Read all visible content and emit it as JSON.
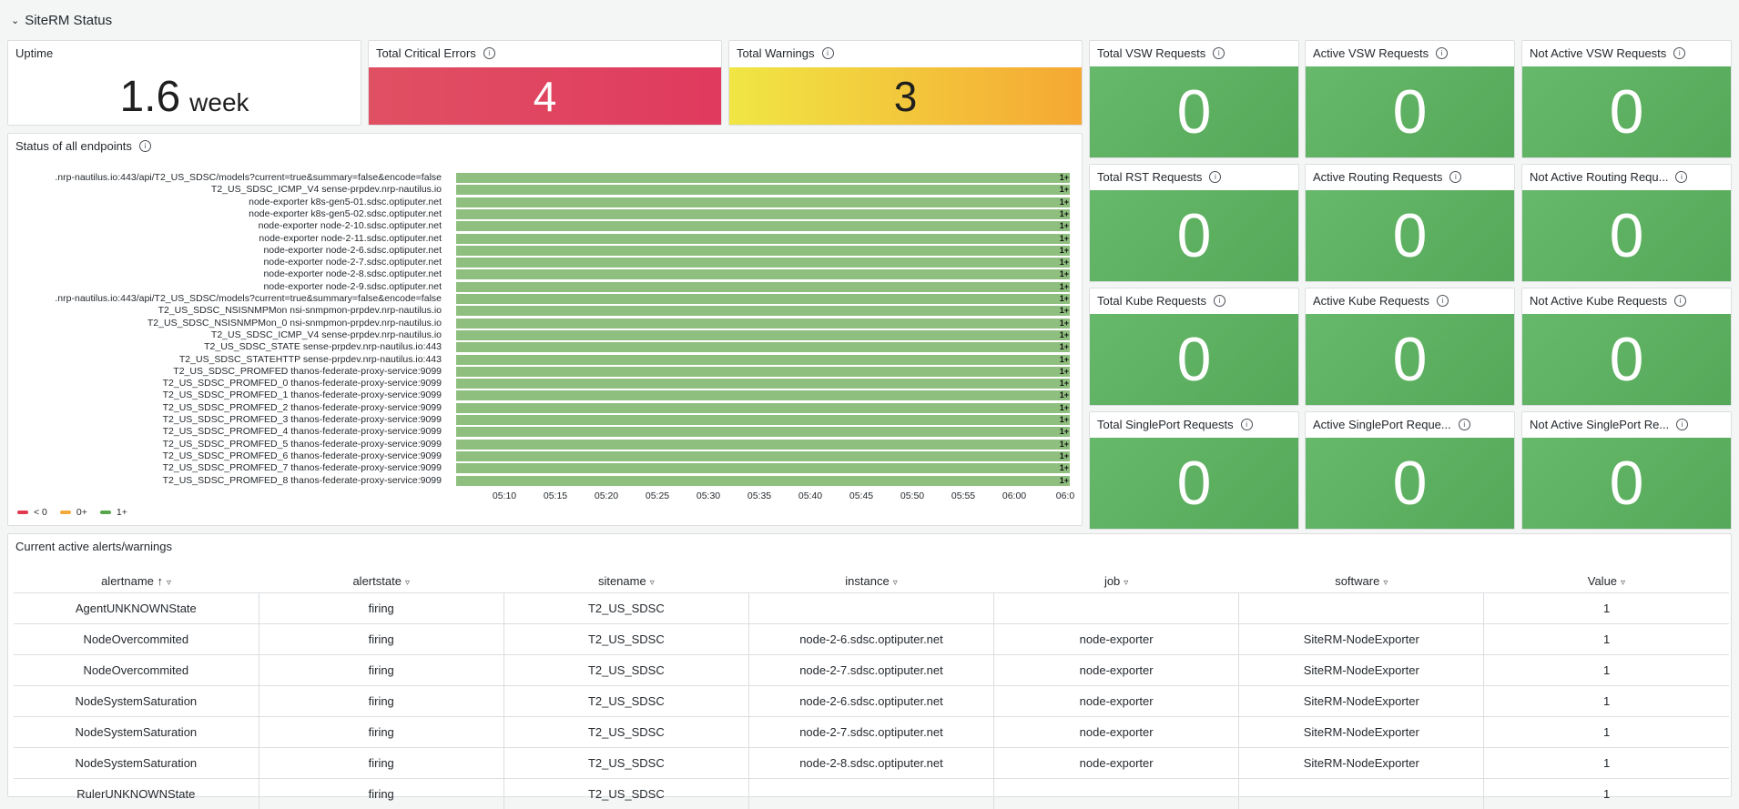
{
  "row": {
    "chevron": "⌄",
    "title": "SiteRM Status"
  },
  "uptime": {
    "title": "Uptime",
    "value": "1.6",
    "unit": "week"
  },
  "critical": {
    "title": "Total Critical Errors",
    "value": "4",
    "color": "#e03a5e"
  },
  "warnings": {
    "title": "Total Warnings",
    "value": "3",
    "color": "#f5a833"
  },
  "stats": [
    {
      "title": "Total VSW Requests",
      "value": "0"
    },
    {
      "title": "Active VSW Requests",
      "value": "0"
    },
    {
      "title": "Not Active VSW Requests",
      "value": "0"
    },
    {
      "title": "Total RST Requests",
      "value": "0"
    },
    {
      "title": "Active Routing Requests",
      "value": "0"
    },
    {
      "title": "Not Active Routing Requ...",
      "value": "0"
    },
    {
      "title": "Total Kube Requests",
      "value": "0"
    },
    {
      "title": "Active Kube Requests",
      "value": "0"
    },
    {
      "title": "Not Active Kube Requests",
      "value": "0"
    },
    {
      "title": "Total SinglePort Requests",
      "value": "0"
    },
    {
      "title": "Active SinglePort Reque...",
      "value": "0"
    },
    {
      "title": "Not Active SinglePort Re...",
      "value": "0"
    }
  ],
  "status_panel": {
    "title": "Status of all endpoints",
    "bar_value": "1+",
    "endpoints": [
      ".nrp-nautilus.io:443/api/T2_US_SDSC/models?current=true&summary=false&encode=false",
      "T2_US_SDSC_ICMP_V4 sense-prpdev.nrp-nautilus.io",
      "node-exporter k8s-gen5-01.sdsc.optiputer.net",
      "node-exporter k8s-gen5-02.sdsc.optiputer.net",
      "node-exporter node-2-10.sdsc.optiputer.net",
      "node-exporter node-2-11.sdsc.optiputer.net",
      "node-exporter node-2-6.sdsc.optiputer.net",
      "node-exporter node-2-7.sdsc.optiputer.net",
      "node-exporter node-2-8.sdsc.optiputer.net",
      "node-exporter node-2-9.sdsc.optiputer.net",
      ".nrp-nautilus.io:443/api/T2_US_SDSC/models?current=true&summary=false&encode=false",
      "T2_US_SDSC_NSISNMPMon nsi-snmpmon-prpdev.nrp-nautilus.io",
      "T2_US_SDSC_NSISNMPMon_0 nsi-snmpmon-prpdev.nrp-nautilus.io",
      "T2_US_SDSC_ICMP_V4 sense-prpdev.nrp-nautilus.io",
      "T2_US_SDSC_STATE sense-prpdev.nrp-nautilus.io:443",
      "T2_US_SDSC_STATEHTTP sense-prpdev.nrp-nautilus.io:443",
      "T2_US_SDSC_PROMFED thanos-federate-proxy-service:9099",
      "T2_US_SDSC_PROMFED_0 thanos-federate-proxy-service:9099",
      "T2_US_SDSC_PROMFED_1 thanos-federate-proxy-service:9099",
      "T2_US_SDSC_PROMFED_2 thanos-federate-proxy-service:9099",
      "T2_US_SDSC_PROMFED_3 thanos-federate-proxy-service:9099",
      "T2_US_SDSC_PROMFED_4 thanos-federate-proxy-service:9099",
      "T2_US_SDSC_PROMFED_5 thanos-federate-proxy-service:9099",
      "T2_US_SDSC_PROMFED_6 thanos-federate-proxy-service:9099",
      "T2_US_SDSC_PROMFED_7 thanos-federate-proxy-service:9099",
      "T2_US_SDSC_PROMFED_8 thanos-federate-proxy-service:9099"
    ],
    "time_ticks": [
      "05:10",
      "05:15",
      "05:20",
      "05:25",
      "05:30",
      "05:35",
      "05:40",
      "05:45",
      "05:50",
      "05:55",
      "06:00",
      "06:0"
    ],
    "legend": [
      {
        "label": "< 0",
        "color": "#e0394f"
      },
      {
        "label": "0+",
        "color": "#f2a93b"
      },
      {
        "label": "1+",
        "color": "#56a64b"
      }
    ]
  },
  "chart_data": {
    "type": "table",
    "title": "Status of all endpoints",
    "state_value": "1+",
    "x": [
      "05:10",
      "05:15",
      "05:20",
      "05:25",
      "05:30",
      "05:35",
      "05:40",
      "05:45",
      "05:50",
      "05:55",
      "06:00"
    ]
  },
  "alerts": {
    "title": "Current active alerts/warnings",
    "sort_icon": "↑",
    "columns": [
      "alertname",
      "alertstate",
      "sitename",
      "instance",
      "job",
      "software",
      "Value"
    ],
    "rows": [
      [
        "AgentUNKNOWNState",
        "firing",
        "T2_US_SDSC",
        "",
        "",
        "",
        "1"
      ],
      [
        "NodeOvercommited",
        "firing",
        "T2_US_SDSC",
        "node-2-6.sdsc.optiputer.net",
        "node-exporter",
        "SiteRM-NodeExporter",
        "1"
      ],
      [
        "NodeOvercommited",
        "firing",
        "T2_US_SDSC",
        "node-2-7.sdsc.optiputer.net",
        "node-exporter",
        "SiteRM-NodeExporter",
        "1"
      ],
      [
        "NodeSystemSaturation",
        "firing",
        "T2_US_SDSC",
        "node-2-6.sdsc.optiputer.net",
        "node-exporter",
        "SiteRM-NodeExporter",
        "1"
      ],
      [
        "NodeSystemSaturation",
        "firing",
        "T2_US_SDSC",
        "node-2-7.sdsc.optiputer.net",
        "node-exporter",
        "SiteRM-NodeExporter",
        "1"
      ],
      [
        "NodeSystemSaturation",
        "firing",
        "T2_US_SDSC",
        "node-2-8.sdsc.optiputer.net",
        "node-exporter",
        "SiteRM-NodeExporter",
        "1"
      ],
      [
        "RulerUNKNOWNState",
        "firing",
        "T2_US_SDSC",
        "",
        "",
        "",
        "1"
      ]
    ]
  }
}
